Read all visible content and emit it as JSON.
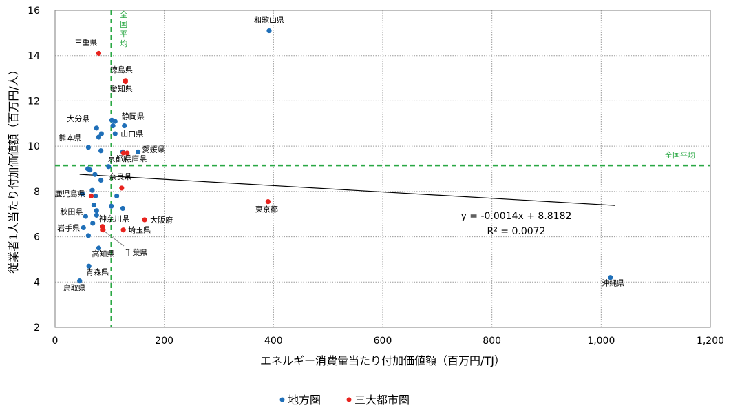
{
  "chart_data": {
    "type": "scatter",
    "title": "",
    "xlabel": "エネルギー消費量当たり付加価値額（百万円/TJ）",
    "ylabel": "従業者1人当たり付加価値額（百万円/人）",
    "xlim": [
      0,
      1200
    ],
    "ylim": [
      2,
      16
    ],
    "x_ticks": [
      0,
      200,
      400,
      600,
      800,
      1000,
      1200
    ],
    "x_tick_labels": [
      "0",
      "200",
      "400",
      "600",
      "800",
      "1,000",
      "1,200"
    ],
    "y_ticks": [
      2,
      4,
      6,
      8,
      10,
      12,
      14,
      16
    ],
    "y_tick_labels": [
      "2",
      "4",
      "6",
      "8",
      "10",
      "12",
      "14",
      "16"
    ],
    "grid": true,
    "legend_position": "bottom",
    "reference_lines": {
      "vertical": {
        "x": 103,
        "label": "全国平均",
        "color": "#2aa844"
      },
      "horizontal": {
        "y": 9.15,
        "label": "全国平均",
        "color": "#2aa844"
      }
    },
    "trendline": {
      "slope": -0.0014,
      "intercept": 8.8182,
      "x_range": [
        45,
        1025
      ],
      "equation": "y = -0.0014x + 8.8182",
      "r_squared": "R² = 0.0072",
      "color": "#000000"
    },
    "series": [
      {
        "name": "地方圏",
        "color": "#1f6fb8",
        "points": [
          {
            "x": 392,
            "y": 15.1,
            "label": "和歌山県"
          },
          {
            "x": 1017,
            "y": 4.2,
            "label": "沖縄県"
          },
          {
            "x": 104,
            "y": 11.15,
            "label": ""
          },
          {
            "x": 110,
            "y": 11.1,
            "label": ""
          },
          {
            "x": 127,
            "y": 10.9,
            "label": "静岡県"
          },
          {
            "x": 76,
            "y": 10.8,
            "label": "大分県"
          },
          {
            "x": 106,
            "y": 10.9,
            "label": ""
          },
          {
            "x": 110,
            "y": 10.55,
            "label": "山口県"
          },
          {
            "x": 85,
            "y": 10.55,
            "label": ""
          },
          {
            "x": 80,
            "y": 10.4,
            "label": ""
          },
          {
            "x": 61,
            "y": 9.95,
            "label": "熊本県"
          },
          {
            "x": 84,
            "y": 9.8,
            "label": ""
          },
          {
            "x": 124,
            "y": 9.75,
            "label": ""
          },
          {
            "x": 152,
            "y": 9.75,
            "label": "愛媛県"
          },
          {
            "x": 98,
            "y": 9.1,
            "label": ""
          },
          {
            "x": 60,
            "y": 9.0,
            "label": ""
          },
          {
            "x": 64,
            "y": 8.95,
            "label": ""
          },
          {
            "x": 73,
            "y": 8.75,
            "label": ""
          },
          {
            "x": 84,
            "y": 8.5,
            "label": ""
          },
          {
            "x": 68,
            "y": 8.05,
            "label": ""
          },
          {
            "x": 50,
            "y": 7.9,
            "label": "鹿児島県"
          },
          {
            "x": 74,
            "y": 7.8,
            "label": ""
          },
          {
            "x": 113,
            "y": 7.8,
            "label": ""
          },
          {
            "x": 71,
            "y": 7.4,
            "label": ""
          },
          {
            "x": 103,
            "y": 7.35,
            "label": ""
          },
          {
            "x": 124,
            "y": 7.25,
            "label": ""
          },
          {
            "x": 76,
            "y": 7.15,
            "label": ""
          },
          {
            "x": 56,
            "y": 6.9,
            "label": "秋田県"
          },
          {
            "x": 76,
            "y": 6.95,
            "label": ""
          },
          {
            "x": 69,
            "y": 6.6,
            "label": ""
          },
          {
            "x": 52,
            "y": 6.4,
            "label": "岩手県"
          },
          {
            "x": 61,
            "y": 6.05,
            "label": ""
          },
          {
            "x": 80,
            "y": 5.5,
            "label": "高知県"
          },
          {
            "x": 62,
            "y": 4.7,
            "label": "青森県"
          },
          {
            "x": 45,
            "y": 4.05,
            "label": "鳥取県"
          }
        ]
      },
      {
        "name": "三大都市圏",
        "color": "#e8231e",
        "points": [
          {
            "x": 80,
            "y": 14.1,
            "label": "三重県"
          },
          {
            "x": 129,
            "y": 12.9,
            "label": "徳島県"
          },
          {
            "x": 129,
            "y": 12.85,
            "label": "愛知県"
          },
          {
            "x": 125,
            "y": 9.7,
            "label": "京都府"
          },
          {
            "x": 132,
            "y": 9.7,
            "label": "兵庫県"
          },
          {
            "x": 122,
            "y": 8.15,
            "label": "奈良県"
          },
          {
            "x": 390,
            "y": 7.55,
            "label": "東京都"
          },
          {
            "x": 66,
            "y": 7.8,
            "label": ""
          },
          {
            "x": 164,
            "y": 6.75,
            "label": "大阪府"
          },
          {
            "x": 87,
            "y": 6.45,
            "label": "神奈川県"
          },
          {
            "x": 88,
            "y": 6.3,
            "label": ""
          },
          {
            "x": 125,
            "y": 6.3,
            "label": "埼玉県"
          }
        ]
      }
    ],
    "callout": {
      "label": "千葉県"
    }
  }
}
